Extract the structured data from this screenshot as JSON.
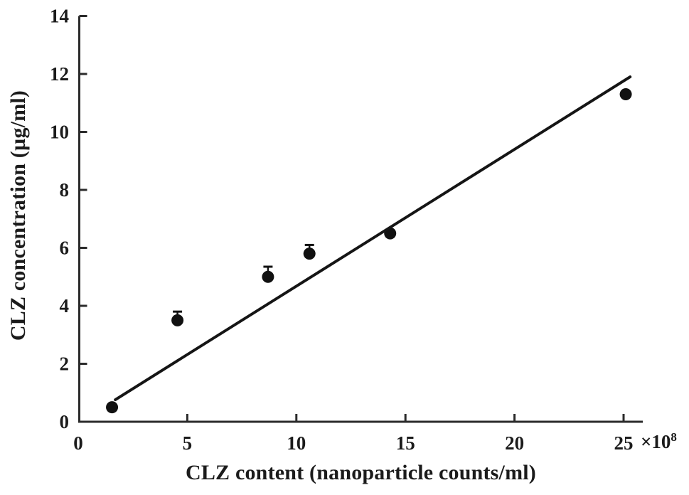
{
  "chart_data": {
    "type": "scatter",
    "title": "",
    "xlabel": "CLZ content (nanoparticle counts/ml)",
    "ylabel": "CLZ concentration (µg/ml)",
    "x_multiplier": {
      "base": "×10",
      "exp": "8"
    },
    "xlim": [
      0,
      26
    ],
    "ylim": [
      0,
      14
    ],
    "x_ticks": [
      0,
      5,
      10,
      15,
      20,
      25
    ],
    "y_ticks": [
      0,
      2,
      4,
      6,
      8,
      10,
      12,
      14
    ],
    "grid": false,
    "legend": null,
    "points": [
      {
        "x": 1.55,
        "y": 0.5,
        "yerr": 0
      },
      {
        "x": 4.55,
        "y": 3.5,
        "yerr": 0.3
      },
      {
        "x": 8.7,
        "y": 5.0,
        "yerr": 0.35
      },
      {
        "x": 10.6,
        "y": 5.8,
        "yerr": 0.3
      },
      {
        "x": 14.3,
        "y": 6.5,
        "yerr": 0
      },
      {
        "x": 25.1,
        "y": 11.3,
        "yerr": 0
      }
    ],
    "trendline": {
      "x1": 1.7,
      "y1": 0.76,
      "x2": 25.3,
      "y2": 11.9
    },
    "colors": {
      "marker": "#111111",
      "line": "#151515",
      "axis": "#2b2b2b",
      "text": "#1b1b1b",
      "background": "#ffffff"
    }
  }
}
